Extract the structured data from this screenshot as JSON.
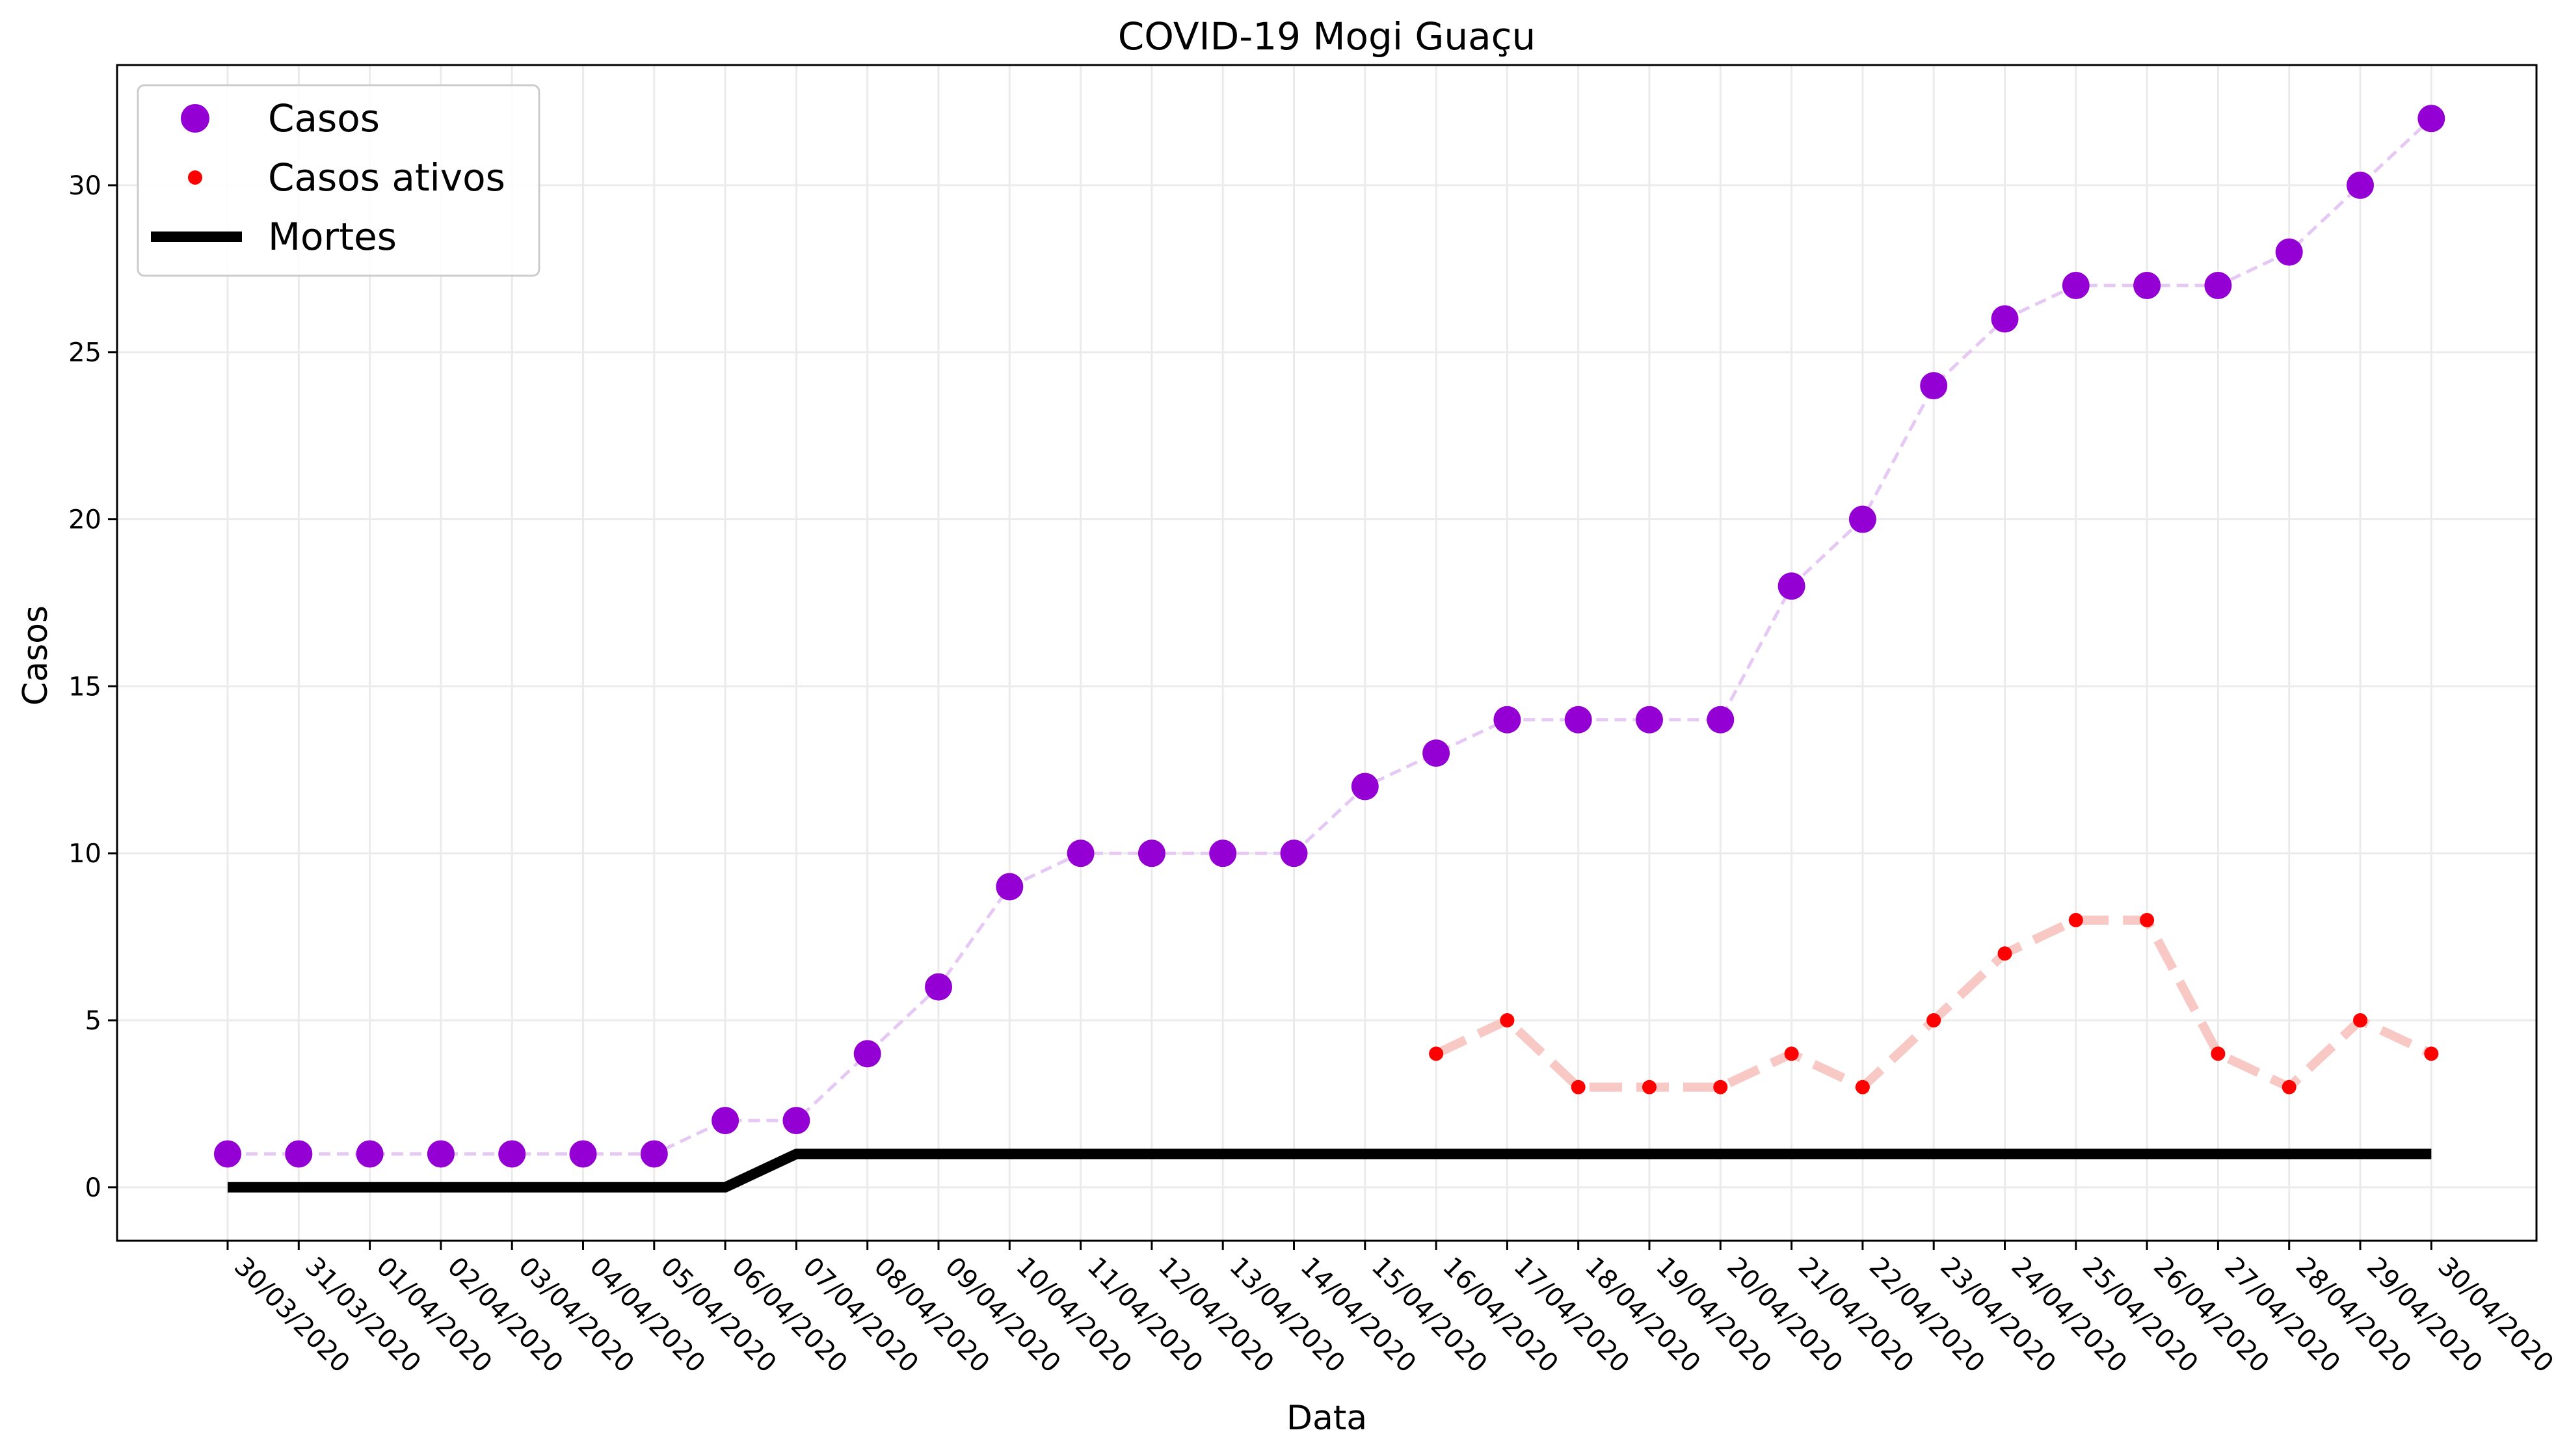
{
  "chart_data": {
    "type": "line",
    "title": "COVID-19 Mogi Guaçu",
    "xlabel": "Data",
    "ylabel": "Casos",
    "ylim": [
      -1.6,
      33.6
    ],
    "yticks": [
      0,
      5,
      10,
      15,
      20,
      25,
      30
    ],
    "grid": true,
    "legend_position": "top-left",
    "categories": [
      "30/03/2020",
      "31/03/2020",
      "01/04/2020",
      "02/04/2020",
      "03/04/2020",
      "04/04/2020",
      "05/04/2020",
      "06/04/2020",
      "07/04/2020",
      "08/04/2020",
      "09/04/2020",
      "10/04/2020",
      "11/04/2020",
      "12/04/2020",
      "13/04/2020",
      "14/04/2020",
      "15/04/2020",
      "16/04/2020",
      "17/04/2020",
      "18/04/2020",
      "19/04/2020",
      "20/04/2020",
      "21/04/2020",
      "22/04/2020",
      "23/04/2020",
      "24/04/2020",
      "25/04/2020",
      "26/04/2020",
      "27/04/2020",
      "28/04/2020",
      "29/04/2020",
      "30/04/2020"
    ],
    "series": [
      {
        "name": "Casos",
        "color": "#9400d3",
        "line_color": "#e6c8f5",
        "marker": "large-circle",
        "values": [
          1,
          1,
          1,
          1,
          1,
          1,
          1,
          2,
          2,
          4,
          6,
          9,
          10,
          10,
          10,
          10,
          12,
          13,
          14,
          14,
          14,
          14,
          18,
          20,
          24,
          26,
          27,
          27,
          27,
          28,
          30,
          32
        ]
      },
      {
        "name": "Casos ativos",
        "color": "#ff0000",
        "line_color": "#f8c8c4",
        "marker": "small-circle",
        "values": [
          null,
          null,
          null,
          null,
          null,
          null,
          null,
          null,
          null,
          null,
          null,
          null,
          null,
          null,
          null,
          null,
          null,
          4,
          5,
          3,
          3,
          3,
          4,
          3,
          5,
          7,
          8,
          8,
          4,
          3,
          5,
          4
        ]
      },
      {
        "name": "Mortes",
        "color": "#000000",
        "marker": "none",
        "values": [
          0,
          0,
          0,
          0,
          0,
          0,
          0,
          0,
          1,
          1,
          1,
          1,
          1,
          1,
          1,
          1,
          1,
          1,
          1,
          1,
          1,
          1,
          1,
          1,
          1,
          1,
          1,
          1,
          1,
          1,
          1,
          1
        ]
      }
    ]
  }
}
